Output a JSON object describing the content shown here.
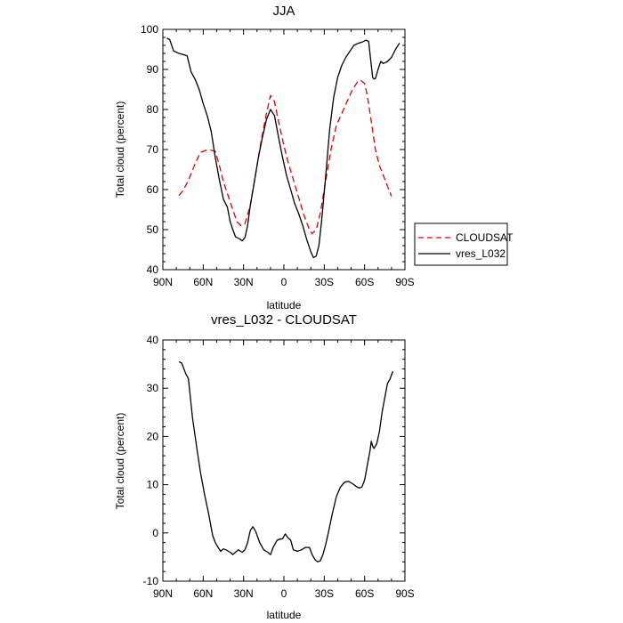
{
  "chart_data": [
    {
      "type": "line",
      "title": "JJA",
      "xlabel": "latitude",
      "ylabel": "Total cloud (percent)",
      "xlim": [
        90,
        -90
      ],
      "ylim": [
        40,
        100
      ],
      "x_ticks": [
        90,
        60,
        30,
        0,
        -30,
        -60,
        -90
      ],
      "x_tick_labels": [
        "90N",
        "60N",
        "30N",
        "0",
        "30S",
        "60S",
        "90S"
      ],
      "y_ticks": [
        40,
        50,
        60,
        70,
        80,
        90,
        100
      ],
      "y_tick_labels": [
        "40",
        "50",
        "60",
        "70",
        "80",
        "90",
        "100"
      ],
      "legend": {
        "placement": "right",
        "entries": [
          "CLOUDSAT",
          "vres_L032"
        ]
      },
      "series": [
        {
          "name": "CLOUDSAT",
          "color": "#e00000",
          "dash": "dashed",
          "x": [
            78,
            75,
            71,
            66,
            62,
            58,
            55,
            51,
            48,
            45,
            42,
            38,
            35,
            32,
            29,
            25,
            21,
            17,
            13,
            10,
            7,
            4,
            0,
            -3,
            -7,
            -11,
            -15,
            -19,
            -21,
            -24,
            -27,
            -31,
            -35,
            -39,
            -43,
            -47,
            -51,
            -55,
            -57,
            -60,
            -62,
            -65,
            -68,
            -71,
            -74,
            -78,
            -80
          ],
          "values": [
            58.5,
            59.8,
            62.3,
            66.5,
            69.3,
            69.8,
            69.9,
            69.5,
            66.0,
            62.0,
            59.0,
            55.0,
            52.0,
            51.0,
            51.5,
            56.0,
            64.0,
            72.0,
            79.0,
            83.5,
            82.0,
            77.0,
            71.0,
            67.0,
            62.5,
            58.0,
            53.5,
            50.0,
            49.0,
            50.0,
            54.0,
            62.0,
            70.0,
            76.0,
            79.0,
            82.0,
            85.0,
            87.0,
            87.3,
            86.5,
            83.5,
            77.0,
            70.0,
            66.0,
            63.5,
            60.0,
            58.3
          ]
        },
        {
          "name": "vres_L032",
          "color": "#000000",
          "dash": "solid",
          "x": [
            87,
            85,
            82,
            78,
            75,
            72,
            69,
            66,
            63,
            60,
            57,
            54,
            51,
            48,
            45,
            42,
            40,
            38,
            36,
            33,
            31,
            29,
            27,
            25,
            22,
            19,
            16,
            13,
            10,
            7,
            4,
            1,
            -2,
            -5,
            -8,
            -11,
            -14,
            -17,
            -20,
            -22,
            -24,
            -26,
            -28,
            -31,
            -34,
            -37,
            -40,
            -43,
            -46,
            -49,
            -52,
            -55,
            -58,
            -61,
            -63,
            -64,
            -65,
            -66,
            -67,
            -68,
            -70,
            -72,
            -74,
            -77,
            -80,
            -83,
            -86
          ],
          "values": [
            97.8,
            97.5,
            94.6,
            94.0,
            93.7,
            93.4,
            89.4,
            87.5,
            85.0,
            81.5,
            78.4,
            74.4,
            68.0,
            62.4,
            57.6,
            55.6,
            52.0,
            50.0,
            48.2,
            47.7,
            47.2,
            48.0,
            51.0,
            56.0,
            62.0,
            68.0,
            73.0,
            77.5,
            80.0,
            78.5,
            73.0,
            68.0,
            63.5,
            60.0,
            56.5,
            54.0,
            51.0,
            47.5,
            44.5,
            43.0,
            43.4,
            46.0,
            52.0,
            63.0,
            75.0,
            83.0,
            88.0,
            91.0,
            93.0,
            94.5,
            96.0,
            96.5,
            96.8,
            97.3,
            97.0,
            94.0,
            91.0,
            88.0,
            87.6,
            87.7,
            90.0,
            92.0,
            91.5,
            92.0,
            93.0,
            95.0,
            96.6
          ]
        }
      ]
    },
    {
      "type": "line",
      "title": "vres_L032 - CLOUDSAT",
      "xlabel": "latitude",
      "ylabel": "Total cloud (percent)",
      "xlim": [
        90,
        -90
      ],
      "ylim": [
        -10,
        40
      ],
      "x_ticks": [
        90,
        60,
        30,
        0,
        -30,
        -60,
        -90
      ],
      "x_tick_labels": [
        "90N",
        "60N",
        "30N",
        "0",
        "30S",
        "60S",
        "90S"
      ],
      "y_ticks": [
        -10,
        0,
        10,
        20,
        30,
        40
      ],
      "y_tick_labels": [
        "-10",
        "0",
        "10",
        "20",
        "30",
        "40"
      ],
      "series": [
        {
          "color": "#000000",
          "dash": "solid",
          "x": [
            78,
            76,
            73,
            71,
            68,
            65,
            62,
            59,
            56,
            53,
            51,
            49,
            47,
            45,
            43,
            40,
            38,
            36,
            34,
            31,
            29,
            27,
            25,
            23,
            21,
            18,
            15,
            12,
            10,
            8,
            5,
            3,
            1,
            -1,
            -3,
            -5,
            -7,
            -10,
            -13,
            -16,
            -19,
            -21,
            -23,
            -25,
            -27,
            -29,
            -31,
            -33,
            -36,
            -39,
            -42,
            -45,
            -48,
            -51,
            -54,
            -56,
            -58,
            -60,
            -62,
            -63,
            -64,
            -65,
            -66,
            -67,
            -69,
            -71,
            -73,
            -75,
            -77,
            -79,
            -81
          ],
          "values": [
            35.5,
            35.2,
            33.0,
            32.0,
            24.0,
            18.0,
            12.5,
            8.0,
            4.0,
            -0.5,
            -2.0,
            -3.0,
            -3.8,
            -3.3,
            -3.5,
            -4.0,
            -4.5,
            -4.0,
            -3.5,
            -4.0,
            -3.5,
            -2.0,
            0.5,
            1.3,
            0.3,
            -2.0,
            -3.5,
            -4.0,
            -4.5,
            -3.0,
            -1.5,
            -1.3,
            -1.2,
            -0.2,
            -1.0,
            -1.5,
            -3.5,
            -3.8,
            -3.5,
            -3.0,
            -3.0,
            -4.5,
            -5.5,
            -6.0,
            -5.8,
            -4.5,
            -2.5,
            0.0,
            4.0,
            7.5,
            9.5,
            10.5,
            10.7,
            10.2,
            9.6,
            9.3,
            9.5,
            11.0,
            14.0,
            15.5,
            17.0,
            19.0,
            18.0,
            17.5,
            18.5,
            21.0,
            25.0,
            28.0,
            31.0,
            32.0,
            33.5
          ]
        }
      ]
    }
  ]
}
